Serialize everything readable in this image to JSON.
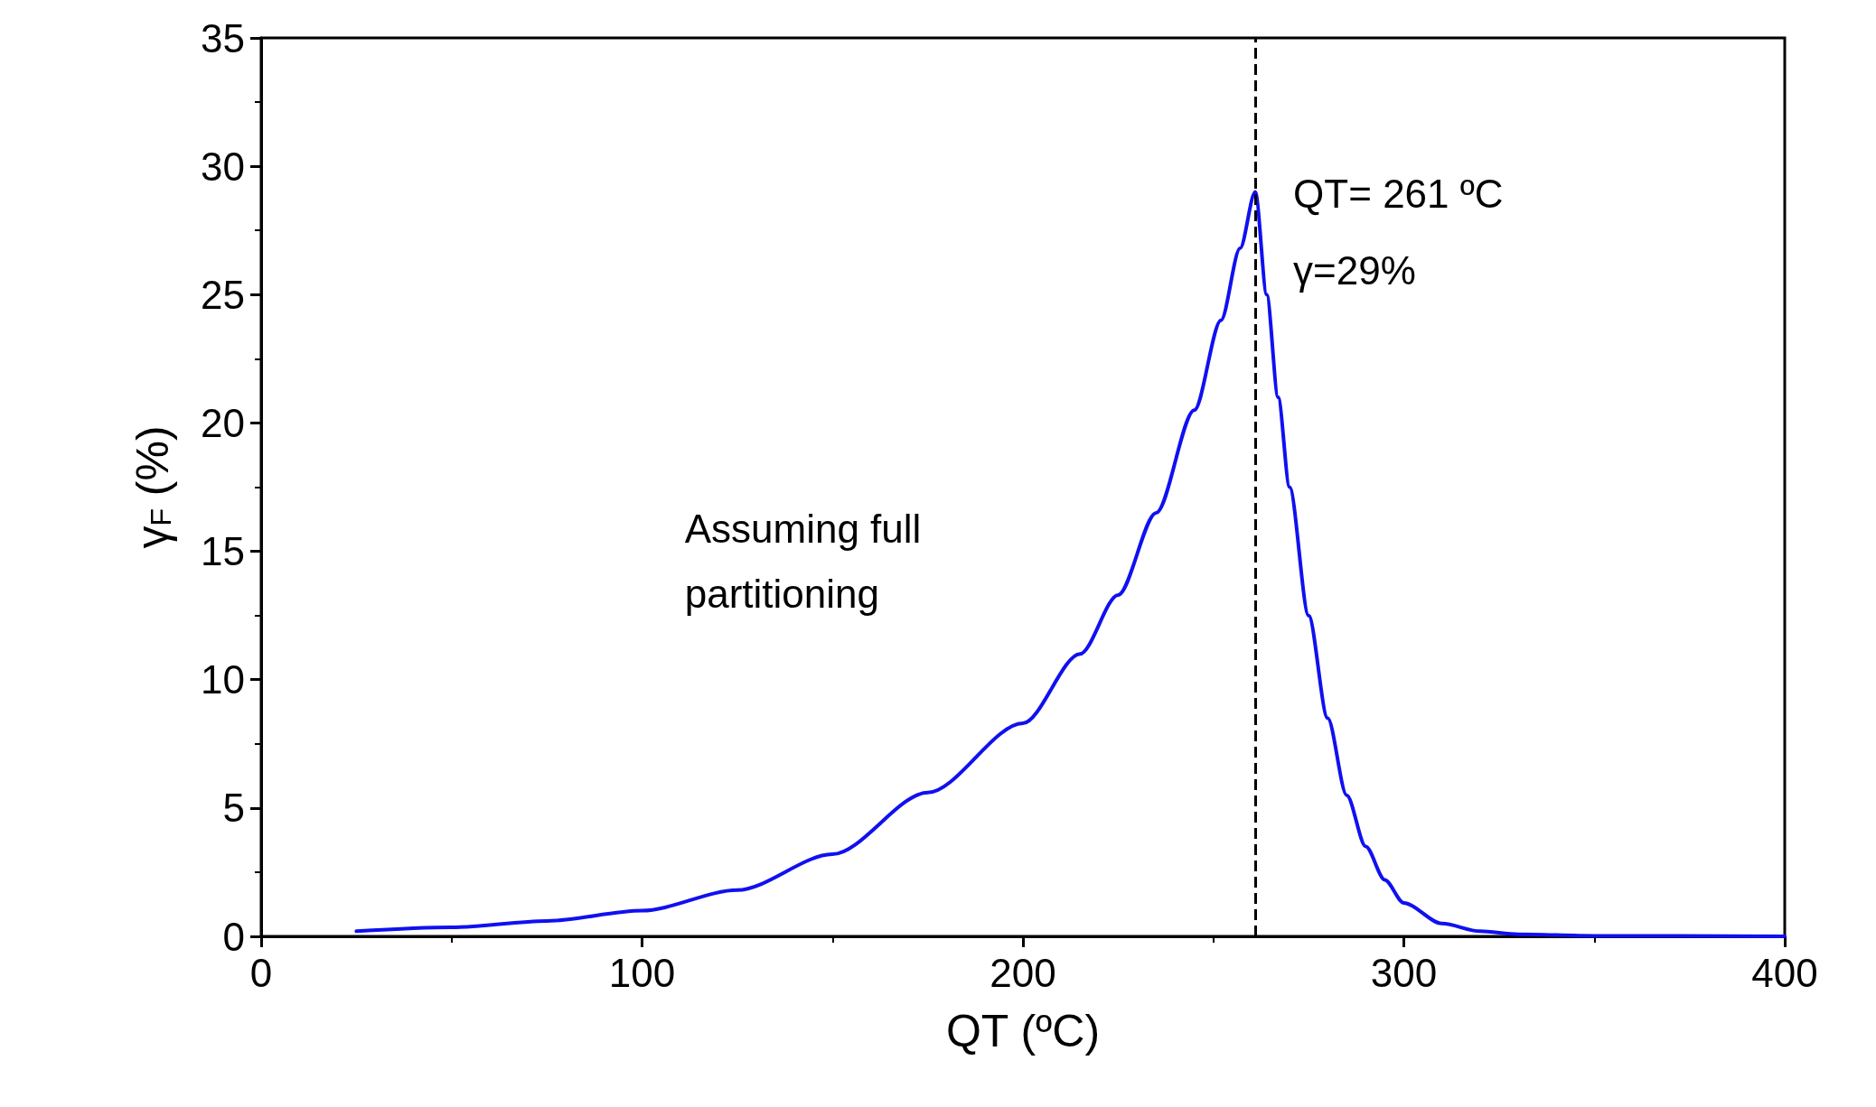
{
  "chart_data": {
    "type": "line",
    "xlabel": "QT (ºC)",
    "ylabel": "γ$_{F}$ (%)",
    "x": [
      25,
      50,
      75,
      100,
      125,
      150,
      175,
      200,
      215,
      225,
      235,
      245,
      252,
      257,
      261,
      264,
      267,
      270,
      275,
      280,
      285,
      290,
      295,
      300,
      310,
      320,
      330,
      350,
      400
    ],
    "series": [
      {
        "color": "#1010f0",
        "values": [
          0.2,
          0.35,
          0.6,
          1.0,
          1.8,
          3.2,
          5.6,
          8.3,
          11,
          13.3,
          16.5,
          20.5,
          24,
          26.8,
          29,
          25,
          21,
          17.5,
          12.5,
          8.5,
          5.5,
          3.5,
          2.2,
          1.3,
          0.5,
          0.2,
          0.08,
          0.02,
          0
        ]
      }
    ],
    "xlim": [
      0,
      400
    ],
    "xticks": [
      0,
      100,
      200,
      300,
      400
    ],
    "ylim": [
      0,
      35
    ],
    "yticks": [
      0,
      5,
      10,
      15,
      20,
      25,
      30,
      35
    ],
    "grid": false,
    "marker": "none",
    "line_style": "solid",
    "ref_lines": [
      {
        "axis": "x",
        "value": 261,
        "color": "#000000",
        "line_style": "dashed"
      }
    ],
    "annotations": [
      {
        "text": "QT= 261 ºC",
        "x": 261,
        "y": 29
      },
      {
        "text": "γ=29%",
        "x": 261,
        "y": 29
      },
      "Assuming full partitioning"
    ]
  }
}
